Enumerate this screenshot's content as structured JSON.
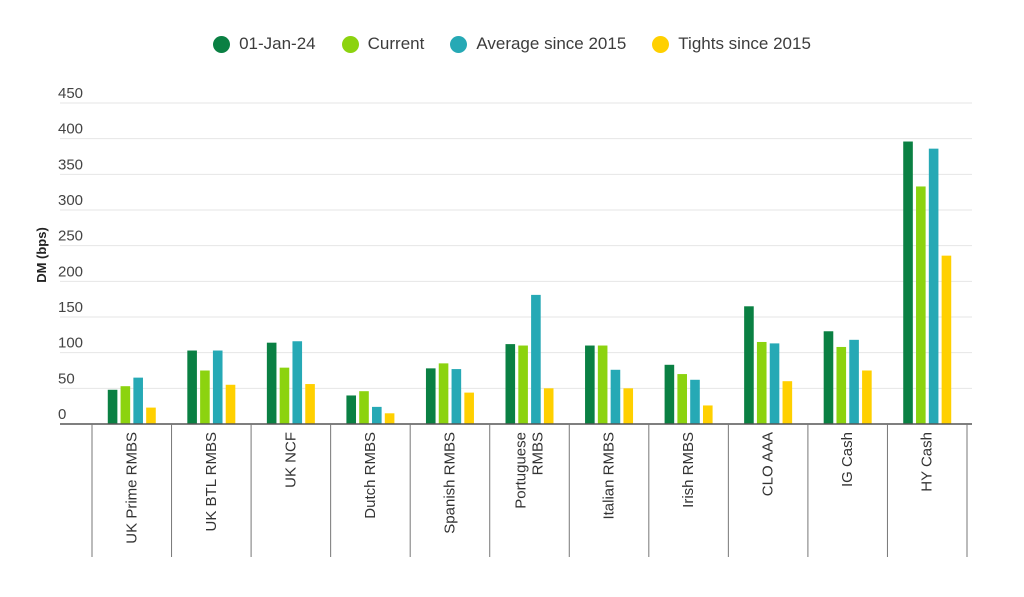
{
  "chart_data": {
    "type": "bar",
    "title": "",
    "xlabel": "",
    "ylabel": "DM (bps)",
    "ylim": [
      0,
      450
    ],
    "yticks": [
      0,
      50,
      100,
      150,
      200,
      250,
      300,
      350,
      400,
      450
    ],
    "grid": true,
    "legend_position": "top-center",
    "categories": [
      [
        "UK Prime RMBS"
      ],
      [
        "UK BTL RMBS"
      ],
      [
        "UK NCF"
      ],
      [
        "Dutch RMBS"
      ],
      [
        "Spanish RMBS"
      ],
      [
        "Portuguese",
        "RMBS"
      ],
      [
        "Italian RMBS"
      ],
      [
        "Irish RMBS"
      ],
      [
        "CLO AAA"
      ],
      [
        "IG Cash"
      ],
      [
        "HY Cash"
      ]
    ],
    "series": [
      {
        "name": "01-Jan-24",
        "color": "#0a8043",
        "values": [
          48,
          103,
          114,
          40,
          78,
          112,
          110,
          83,
          165,
          130,
          396
        ]
      },
      {
        "name": "Current",
        "color": "#8cd30f",
        "values": [
          53,
          75,
          79,
          46,
          85,
          110,
          110,
          70,
          115,
          108,
          333
        ]
      },
      {
        "name": "Average since 2015",
        "color": "#26a9b5",
        "values": [
          65,
          103,
          116,
          24,
          77,
          181,
          76,
          62,
          113,
          118,
          386
        ]
      },
      {
        "name": "Tights since 2015",
        "color": "#ffd000",
        "values": [
          23,
          55,
          56,
          15,
          44,
          50,
          50,
          26,
          60,
          75,
          236
        ]
      }
    ]
  }
}
